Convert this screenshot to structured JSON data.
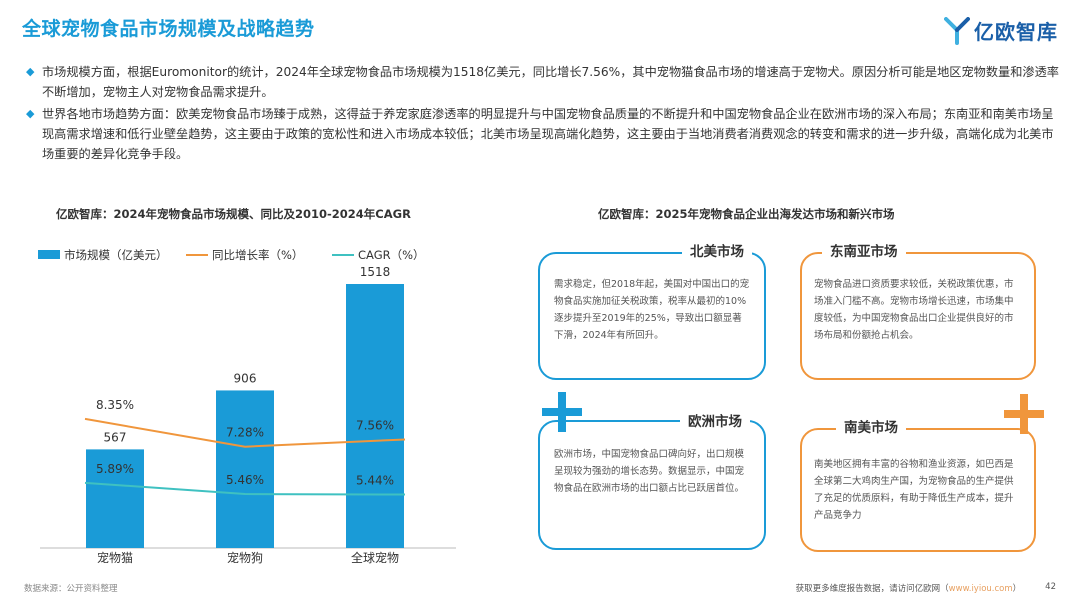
{
  "header": {
    "title": "全球宠物食品市场规模及战略趋势",
    "logo_text": "亿欧智库",
    "logo_icon": "yiou-logo-icon"
  },
  "bullets": [
    "市场规模方面，根据Euromonitor的统计，2024年全球宠物食品市场规模为1518亿美元，同比增长7.56%，其中宠物猫食品市场的增速高于宠物犬。原因分析可能是地区宠物数量和渗透率不断增加，宠物主人对宠物食品需求提升。",
    "世界各地市场趋势方面：欧美宠物食品市场臻于成熟，这得益于养宠家庭渗透率的明显提升与中国宠物食品质量的不断提升和中国宠物食品企业在欧洲市场的深入布局；东南亚和南美市场呈现高需求增速和低行业壁垒趋势，这主要由于政策的宽松性和进入市场成本较低；北美市场呈现高端化趋势，这主要由于当地消费者消费观念的转变和需求的进一步升级，高端化成为北美市场重要的差异化竞争手段。"
  ],
  "left_chart_title": "亿欧智库：2024年宠物食品市场规模、同比及2010-2024年CAGR",
  "right_chart_title": "亿欧智库：2025年宠物食品企业出海发达市场和新兴市场",
  "chart_data": {
    "type": "bar",
    "categories": [
      "宠物猫",
      "宠物狗",
      "全球宠物"
    ],
    "series": [
      {
        "name": "市场规模（亿美元）",
        "kind": "bar",
        "color": "#1a9bd7",
        "values": [
          567,
          906,
          1518
        ],
        "labels": [
          "567",
          "906",
          "1518"
        ]
      },
      {
        "name": "同比增长率（%）",
        "kind": "line",
        "color": "#f0963c",
        "values": [
          8.35,
          7.28,
          7.56
        ],
        "labels": [
          "8.35%",
          "7.28%",
          "7.56%"
        ]
      },
      {
        "name": "CAGR（%）",
        "kind": "line",
        "color": "#3fc1c1",
        "values": [
          5.89,
          5.46,
          5.44
        ],
        "labels": [
          "5.89%",
          "5.46%",
          "5.44%"
        ]
      }
    ],
    "legend_position": "top",
    "grid": false
  },
  "regions": {
    "north_america": {
      "title": "北美市场",
      "body": "需求稳定，但2018年起，美国对中国出口的宠物食品实施加征关税政策，税率从最初的10%逐步提升至2019年的25%，导致出口额显著下滑，2024年有所回升。",
      "color": "#1a9bd7"
    },
    "southeast_asia": {
      "title": "东南亚市场",
      "body": "宠物食品进口资质要求较低，关税政策优惠，市场准入门槛不高。宠物市场增长迅速，市场集中度较低，为中国宠物食品出口企业提供良好的市场布局和份额抢占机会。",
      "color": "#f0963c"
    },
    "europe": {
      "title": "欧洲市场",
      "body": "欧洲市场，中国宠物食品口碑向好，出口规模呈现较为强劲的增长态势。数据显示，中国宠物食品在欧洲市场的出口额占比已跃居首位。",
      "color": "#1a9bd7"
    },
    "south_america": {
      "title": "南美市场",
      "body": "南美地区拥有丰富的谷物和渔业资源，如巴西是全球第二大鸡肉生产国，为宠物食品的生产提供了充足的优质原料，有助于降低生产成本，提升产品竞争力",
      "color": "#f0963c"
    }
  },
  "footer": {
    "source": "数据来源：公开资料整理",
    "promo_prefix": "获取更多维度报告数据，请访问亿欧网（",
    "promo_link": "www.iyiou.com",
    "promo_suffix": "）",
    "page_number": "42"
  }
}
